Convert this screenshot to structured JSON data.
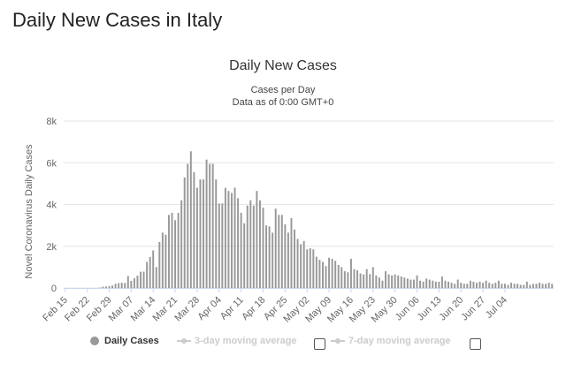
{
  "page": {
    "title": "Daily New Cases in Italy"
  },
  "chart_data": {
    "type": "bar",
    "title": "Daily New Cases",
    "subtitle_lines": [
      "Cases per Day",
      "Data as of 0:00 GMT+0"
    ],
    "ylabel": "Novel Coronavirus Daily Cases",
    "xlabel": "",
    "ylim": [
      0,
      8000
    ],
    "yticks": [
      0,
      2000,
      4000,
      6000,
      8000
    ],
    "ytick_labels": [
      "0",
      "2k",
      "4k",
      "6k",
      "8k"
    ],
    "x_tick_labels": [
      "Feb 15",
      "Feb 22",
      "Feb 29",
      "Mar 07",
      "Mar 14",
      "Mar 21",
      "Mar 28",
      "Apr 04",
      "Apr 11",
      "Apr 18",
      "Apr 25",
      "May 02",
      "May 09",
      "May 16",
      "May 23",
      "May 30",
      "Jun 06",
      "Jun 13",
      "Jun 20",
      "Jun 27",
      "Jul 04"
    ],
    "grid": true,
    "bar_color": "#999999",
    "series": [
      {
        "name": "Daily Cases",
        "values": [
          0,
          0,
          0,
          0,
          0,
          0,
          0,
          0,
          0,
          0,
          0,
          20,
          60,
          70,
          90,
          120,
          200,
          230,
          250,
          240,
          570,
          340,
          470,
          590,
          780,
          780,
          1250,
          1490,
          1800,
          1000,
          2200,
          2650,
          2550,
          3500,
          3600,
          3250,
          3600,
          4200,
          5300,
          5950,
          6550,
          5550,
          4800,
          5200,
          5200,
          6150,
          5950,
          5950,
          5200,
          4050,
          4050,
          4800,
          4650,
          4550,
          4800,
          4300,
          3600,
          3100,
          3950,
          4200,
          3950,
          4650,
          4200,
          3850,
          3000,
          2950,
          2650,
          3800,
          3500,
          3500,
          3050,
          2650,
          3350,
          2800,
          2350,
          2100,
          2250,
          1850,
          1900,
          1850,
          1500,
          1350,
          1250,
          1050,
          1450,
          1400,
          1300,
          1100,
          1000,
          800,
          750,
          1400,
          900,
          850,
          700,
          650,
          900,
          660,
          1000,
          600,
          500,
          350,
          800,
          650,
          600,
          650,
          600,
          550,
          500,
          450,
          400,
          400,
          600,
          350,
          300,
          450,
          400,
          350,
          300,
          300,
          550,
          350,
          300,
          250,
          200,
          400,
          250,
          200,
          200,
          350,
          300,
          250,
          300,
          250,
          350,
          250,
          200,
          250,
          350,
          200,
          200,
          150,
          250,
          200,
          200,
          150,
          150,
          300,
          150,
          200,
          200,
          250,
          200,
          200,
          250,
          200
        ]
      },
      {
        "name": "3-day moving average",
        "values": [],
        "visible": false
      },
      {
        "name": "7-day moving average",
        "values": [],
        "visible": false
      }
    ],
    "legend_position": "bottom"
  }
}
